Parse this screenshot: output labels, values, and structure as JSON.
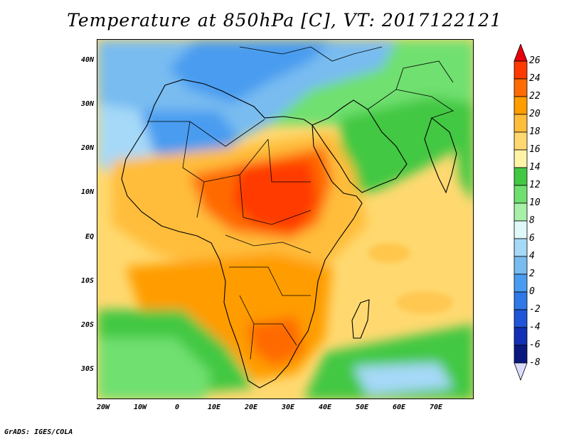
{
  "title": "Temperature at 850hPa [C], VT: 2017122121",
  "credit": "GrADS: IGES/COLA",
  "lat_labels": [
    "40N",
    "30N",
    "20N",
    "10N",
    "EQ",
    "10S",
    "20S",
    "30S"
  ],
  "lon_labels": [
    "20W",
    "10W",
    "0",
    "10E",
    "20E",
    "30E",
    "40E",
    "50E",
    "60E",
    "70E"
  ],
  "colorbar": {
    "labels": [
      "26",
      "24",
      "22",
      "20",
      "18",
      "16",
      "14",
      "12",
      "10",
      "8",
      "6",
      "4",
      "2",
      "0",
      "-2",
      "-4",
      "-6",
      "-8"
    ],
    "colors": [
      "#e8000b",
      "#ff3a00",
      "#ff6b00",
      "#ff9c00",
      "#ffbd3a",
      "#ffd970",
      "#fff4a6",
      "#43c843",
      "#6fe06f",
      "#a8f0a8",
      "#e0f8f8",
      "#a6d9f8",
      "#78bcf0",
      "#4a9cf0",
      "#2f78e8",
      "#1f55d8",
      "#1230b5",
      "#0a1880",
      "#dcdcff"
    ]
  }
}
